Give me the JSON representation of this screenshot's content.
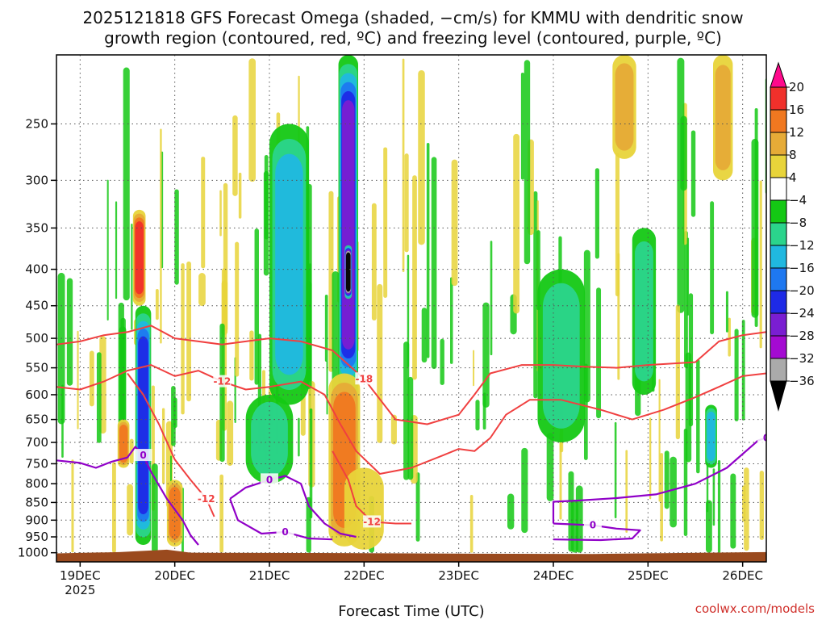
{
  "chart_data": {
    "type": "heatmap",
    "title_line1": "2025121818 GFS Forecast Omega (shaded, −cm/s) for KMMU with dendritic snow",
    "title_line2": "growth region (contoured, red, ºC) and freezing level (contoured, purple, ºC)",
    "xlabel": "Forecast Time (UTC)",
    "ylabel": "",
    "watermark": "coolwx.com/models",
    "y_axis": {
      "unit": "hPa",
      "scale": "log",
      "range": [
        1030,
        200
      ],
      "ticks": [
        250,
        300,
        350,
        400,
        450,
        500,
        550,
        600,
        650,
        700,
        750,
        800,
        850,
        900,
        950,
        1000
      ]
    },
    "x_axis": {
      "unit": "hours from 19DEC 00Z",
      "range": [
        -6,
        174
      ],
      "ticks": [
        {
          "hour": 0,
          "label": "19DEC",
          "sublabel": "2025"
        },
        {
          "hour": 24,
          "label": "20DEC"
        },
        {
          "hour": 48,
          "label": "21DEC"
        },
        {
          "hour": 72,
          "label": "22DEC"
        },
        {
          "hour": 96,
          "label": "23DEC"
        },
        {
          "hour": 120,
          "label": "24DEC"
        },
        {
          "hour": 144,
          "label": "25DEC"
        },
        {
          "hour": 168,
          "label": "26DEC"
        }
      ]
    },
    "colorbar": {
      "labels": [
        "20",
        "16",
        "12",
        "8",
        "4",
        "−4",
        "−8",
        "−12",
        "−16",
        "−20",
        "−24",
        "−28",
        "−32",
        "−36"
      ],
      "colors": [
        "#ff0a8c",
        "#f0302b",
        "#f07820",
        "#e6ab37",
        "#e8d43a",
        "#ffffff",
        "#14c814",
        "#2bd48c",
        "#20b8e0",
        "#1e78f0",
        "#1e2ae6",
        "#7a1ed2",
        "#a40ad2",
        "#aaaaaa",
        "#000000"
      ]
    },
    "omega_features": [
      {
        "center_hour": 16,
        "hour_halfwidth": 2,
        "top_hpa": 450,
        "bottom_hpa": 975,
        "value": -20,
        "note": "ascent column"
      },
      {
        "center_hour": 15,
        "hour_halfwidth": 1.6,
        "top_hpa": 330,
        "bottom_hpa": 450,
        "value": 18,
        "note": "descent"
      },
      {
        "center_hour": 11,
        "hour_halfwidth": 1.5,
        "top_hpa": 650,
        "bottom_hpa": 760,
        "value": 14
      },
      {
        "center_hour": 24,
        "hour_halfwidth": 2,
        "top_hpa": 790,
        "bottom_hpa": 980,
        "value": 14
      },
      {
        "center_hour": 53,
        "hour_halfwidth": 5,
        "top_hpa": 250,
        "bottom_hpa": 620,
        "value": -14
      },
      {
        "center_hour": 48,
        "hour_halfwidth": 6,
        "top_hpa": 600,
        "bottom_hpa": 800,
        "value": -10
      },
      {
        "center_hour": 68,
        "hour_halfwidth": 2.5,
        "top_hpa": 200,
        "bottom_hpa": 600,
        "value": -24
      },
      {
        "center_hour": 68,
        "hour_halfwidth": 0.9,
        "top_hpa": 370,
        "bottom_hpa": 440,
        "value": -38
      },
      {
        "center_hour": 67,
        "hour_halfwidth": 4,
        "top_hpa": 560,
        "bottom_hpa": 980,
        "value": 14
      },
      {
        "center_hour": 72,
        "hour_halfwidth": 5,
        "top_hpa": 760,
        "bottom_hpa": 990,
        "value": 6
      },
      {
        "center_hour": 122,
        "hour_halfwidth": 6,
        "top_hpa": 400,
        "bottom_hpa": 700,
        "value": -10
      },
      {
        "center_hour": 138,
        "hour_halfwidth": 3,
        "top_hpa": 200,
        "bottom_hpa": 280,
        "value": 9
      },
      {
        "center_hour": 143,
        "hour_halfwidth": 3,
        "top_hpa": 350,
        "bottom_hpa": 600,
        "value": -8
      },
      {
        "center_hour": 163,
        "hour_halfwidth": 2.5,
        "top_hpa": 200,
        "bottom_hpa": 300,
        "value": 9
      },
      {
        "center_hour": 160,
        "hour_halfwidth": 1.5,
        "top_hpa": 620,
        "bottom_hpa": 760,
        "value": -15
      }
    ],
    "dgz_contours": [
      {
        "label": "-18",
        "color": "#f04040",
        "points": [
          [
            -6,
            510
          ],
          [
            0,
            505
          ],
          [
            6,
            495
          ],
          [
            12,
            490
          ],
          [
            18,
            480
          ],
          [
            24,
            500
          ],
          [
            30,
            505
          ],
          [
            36,
            510
          ],
          [
            42,
            505
          ],
          [
            48,
            500
          ],
          [
            56,
            505
          ],
          [
            64,
            520
          ],
          [
            72,
            570
          ],
          [
            80,
            650
          ],
          [
            88,
            660
          ],
          [
            96,
            640
          ],
          [
            100,
            600
          ],
          [
            104,
            560
          ],
          [
            112,
            545
          ],
          [
            120,
            545
          ],
          [
            128,
            548
          ],
          [
            136,
            550
          ],
          [
            144,
            545
          ],
          [
            156,
            540
          ],
          [
            162,
            505
          ],
          [
            168,
            495
          ],
          [
            174,
            490
          ]
        ]
      },
      {
        "label": "-12",
        "color": "#f04040",
        "points": [
          [
            -6,
            585
          ],
          [
            0,
            590
          ],
          [
            6,
            575
          ],
          [
            12,
            555
          ],
          [
            18,
            545
          ],
          [
            24,
            565
          ],
          [
            30,
            555
          ],
          [
            36,
            575
          ],
          [
            42,
            590
          ],
          [
            48,
            585
          ],
          [
            56,
            575
          ],
          [
            62,
            600
          ],
          [
            66,
            660
          ],
          [
            70,
            720
          ],
          [
            76,
            775
          ],
          [
            84,
            760
          ],
          [
            92,
            730
          ],
          [
            96,
            715
          ],
          [
            100,
            720
          ],
          [
            104,
            690
          ],
          [
            108,
            640
          ],
          [
            114,
            610
          ],
          [
            122,
            610
          ],
          [
            132,
            630
          ],
          [
            140,
            650
          ],
          [
            148,
            630
          ],
          [
            156,
            605
          ],
          [
            162,
            585
          ],
          [
            168,
            565
          ],
          [
            174,
            560
          ]
        ]
      },
      {
        "label": "-12",
        "color": "#f04040",
        "points": [
          [
            12,
            560
          ],
          [
            16,
            600
          ],
          [
            20,
            660
          ],
          [
            24,
            740
          ],
          [
            28,
            790
          ],
          [
            32,
            840
          ],
          [
            34,
            890
          ]
        ]
      },
      {
        "label": "-12",
        "color": "#f04040",
        "points": [
          [
            64,
            720
          ],
          [
            68,
            790
          ],
          [
            70,
            860
          ],
          [
            74,
            905
          ],
          [
            80,
            910
          ],
          [
            84,
            910
          ]
        ]
      }
    ],
    "freezing_contours": [
      {
        "label": "0",
        "color": "#9000c8",
        "points": [
          [
            -6,
            742
          ],
          [
            0,
            748
          ],
          [
            4,
            760
          ],
          [
            8,
            745
          ],
          [
            12,
            735
          ],
          [
            14,
            710
          ],
          [
            16,
            730
          ],
          [
            18,
            770
          ],
          [
            22,
            840
          ],
          [
            26,
            900
          ],
          [
            28,
            945
          ],
          [
            30,
            975
          ]
        ]
      },
      {
        "label": "0",
        "color": "#9000c8",
        "points": [
          [
            38,
            840
          ],
          [
            42,
            810
          ],
          [
            48,
            790
          ],
          [
            52,
            780
          ],
          [
            56,
            800
          ],
          [
            58,
            860
          ],
          [
            62,
            910
          ],
          [
            66,
            940
          ],
          [
            70,
            950
          ]
        ]
      },
      {
        "label": "0",
        "color": "#9000c8",
        "points": [
          [
            38,
            840
          ],
          [
            40,
            900
          ],
          [
            46,
            940
          ],
          [
            52,
            935
          ],
          [
            58,
            955
          ],
          [
            64,
            958
          ]
        ]
      },
      {
        "label": "0",
        "color": "#9000c8",
        "points": [
          [
            120,
            910
          ],
          [
            120,
            848
          ],
          [
            126,
            845
          ],
          [
            136,
            838
          ],
          [
            146,
            828
          ],
          [
            156,
            800
          ],
          [
            164,
            760
          ],
          [
            172,
            695
          ],
          [
            174,
            690
          ]
        ]
      },
      {
        "label": "0",
        "color": "#9000c8",
        "points": [
          [
            120,
            958
          ],
          [
            132,
            960
          ],
          [
            140,
            955
          ],
          [
            142,
            930
          ],
          [
            136,
            925
          ],
          [
            130,
            915
          ],
          [
            120,
            910
          ]
        ]
      }
    ]
  }
}
